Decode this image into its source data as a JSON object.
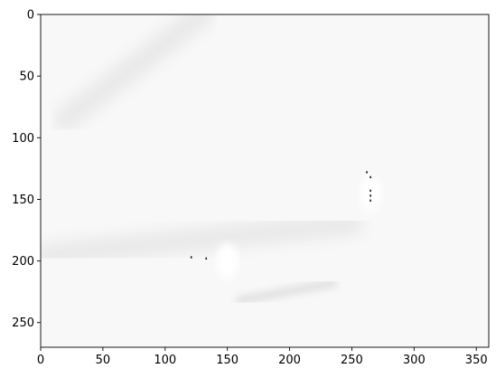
{
  "chart_data": {
    "type": "heatmap",
    "title": "",
    "xlabel": "",
    "ylabel": "",
    "xlim": [
      0,
      360
    ],
    "ylim": [
      270,
      0
    ],
    "y_axis_inverted": true,
    "image_width_units": 360,
    "image_height_units": 270,
    "grid": false,
    "colormap": "grayscale (mostly near-white background)",
    "xticks": [
      0,
      50,
      100,
      150,
      200,
      250,
      300,
      350
    ],
    "yticks": [
      0,
      50,
      100,
      150,
      200,
      250
    ],
    "xtick_labels": [
      "0",
      "50",
      "100",
      "150",
      "200",
      "250",
      "300",
      "350"
    ],
    "ytick_labels": [
      "0",
      "50",
      "100",
      "150",
      "200",
      "250"
    ],
    "dark_specks": [
      {
        "x": 262,
        "y": 128
      },
      {
        "x": 265,
        "y": 132
      },
      {
        "x": 265,
        "y": 143
      },
      {
        "x": 265,
        "y": 147
      },
      {
        "x": 265,
        "y": 151
      },
      {
        "x": 121,
        "y": 197
      },
      {
        "x": 133,
        "y": 198
      }
    ],
    "light_features": [
      {
        "kind": "band",
        "x1": 20,
        "y1": 85,
        "x2": 130,
        "y2": 0
      },
      {
        "kind": "band",
        "x1": 5,
        "y1": 195,
        "x2": 250,
        "y2": 170
      },
      {
        "kind": "streak",
        "x1": 160,
        "y1": 232,
        "x2": 235,
        "y2": 218
      },
      {
        "kind": "blob",
        "x": 265,
        "y": 145
      },
      {
        "kind": "blob",
        "x": 150,
        "y": 200
      }
    ]
  }
}
